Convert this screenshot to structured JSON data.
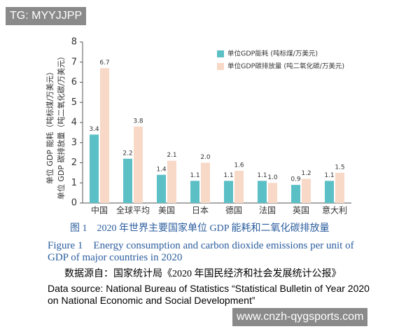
{
  "watermark_top": "TG: MYYJJPP",
  "watermark_bottom": "www.cnzh-qygsports.com",
  "chart_data": {
    "type": "bar",
    "y_label_lines": [
      "单位 GDP 能耗（吨标煤/万美元）",
      "单位 GDP 碳排放量（吨二氧化碳/万美元）"
    ],
    "categories": [
      "中国",
      "全球平均",
      "美国",
      "日本",
      "德国",
      "法国",
      "英国",
      "意大利"
    ],
    "series": [
      {
        "name": "单位GDP能耗 (吨标煤/万美元)",
        "color": "#5bbfc6",
        "values": [
          3.4,
          2.2,
          1.4,
          1.1,
          1.1,
          1.1,
          0.9,
          1.1
        ],
        "value_labels": [
          "3.4",
          "2.2",
          "1.4",
          "1.1",
          "1.1",
          "1.1",
          "0.9",
          "1.1"
        ]
      },
      {
        "name": "单位GDP碳排放量 (吨二氧化碳/万美元)",
        "color": "#f8d8c6",
        "values": [
          6.7,
          3.8,
          2.1,
          2.0,
          1.6,
          1.0,
          1.2,
          1.5
        ],
        "value_labels": [
          "6.7",
          "3.8",
          "2.1",
          "2.0",
          "1.6",
          "1.0",
          "1.2",
          "1.5"
        ]
      }
    ],
    "ylim": [
      0,
      8
    ],
    "yticks": [
      0,
      1,
      2,
      3,
      4,
      5,
      6,
      7,
      8
    ],
    "grid": false,
    "legend": "top-right"
  },
  "caption": {
    "title_zh": "图 1　2020 年世界主要国家单位 GDP 能耗和二氧化碳排放量",
    "title_en": "Figure 1　Energy consumption and carbon dioxide emissions per unit of GDP of major countries in 2020",
    "source_zh": "数据源自：国家统计局《2020 年国民经济和社会发展统计公报》",
    "source_en": "Data source: National Bureau of Statistics “Statistical Bulletin of Year 2020 on National Economic and Social Development”"
  }
}
